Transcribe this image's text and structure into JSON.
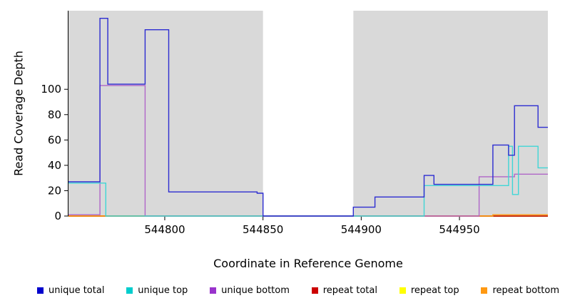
{
  "chart_data": {
    "type": "line",
    "subtype": "step-coverage",
    "title": "",
    "xlabel": "Coordinate in Reference Genome",
    "ylabel": "Read Coverage Depth",
    "x_range": [
      544751,
      544995
    ],
    "y_range": [
      0,
      162
    ],
    "x_ticks": [
      544800,
      544850,
      544900,
      544950
    ],
    "y_ticks": [
      0,
      20,
      40,
      60,
      80,
      100
    ],
    "grid": false,
    "shade_color": "#d9d9d9",
    "shaded_regions": [
      {
        "from": 544751,
        "to": 544850
      },
      {
        "from": 544896,
        "to": 544995
      }
    ],
    "series": [
      {
        "name": "repeat top",
        "color": "#ffff00",
        "steps": [
          [
            544751,
            0
          ]
        ]
      },
      {
        "name": "repeat total",
        "color": "#cc0000",
        "steps": [
          [
            544751,
            0
          ]
        ]
      },
      {
        "name": "repeat bottom",
        "color": "#ff9912",
        "steps": [
          [
            544751,
            0
          ],
          [
            544967,
            1
          ]
        ]
      },
      {
        "name": "unique bottom",
        "color": "#b066c8",
        "steps": [
          [
            544751,
            1
          ],
          [
            544767,
            103
          ],
          [
            544790,
            0
          ],
          [
            544960,
            31
          ],
          [
            544978,
            33
          ]
        ]
      },
      {
        "name": "unique top",
        "color": "#3fd6d6",
        "steps": [
          [
            544751,
            26
          ],
          [
            544770,
            0
          ],
          [
            544932,
            24
          ],
          [
            544975,
            55
          ],
          [
            544977,
            17
          ],
          [
            544980,
            55
          ],
          [
            544990,
            38
          ]
        ]
      },
      {
        "name": "unique total",
        "color": "#2c2cd1",
        "steps": [
          [
            544751,
            27
          ],
          [
            544767,
            156
          ],
          [
            544771,
            104
          ],
          [
            544790,
            147
          ],
          [
            544802,
            19
          ],
          [
            544847,
            18
          ],
          [
            544850,
            0
          ],
          [
            544896,
            7
          ],
          [
            544907,
            15
          ],
          [
            544932,
            32
          ],
          [
            544937,
            25
          ],
          [
            544967,
            56
          ],
          [
            544975,
            48
          ],
          [
            544978,
            87
          ],
          [
            544990,
            70
          ]
        ]
      }
    ],
    "legend_position": "bottom",
    "legend": [
      {
        "label": "unique total",
        "color": "#0000cd"
      },
      {
        "label": "unique top",
        "color": "#00cdcd"
      },
      {
        "label": "unique bottom",
        "color": "#9933cc"
      },
      {
        "label": "repeat total",
        "color": "#cc0000"
      },
      {
        "label": "repeat top",
        "color": "#ffff00"
      },
      {
        "label": "repeat bottom",
        "color": "#ff9912"
      }
    ]
  }
}
